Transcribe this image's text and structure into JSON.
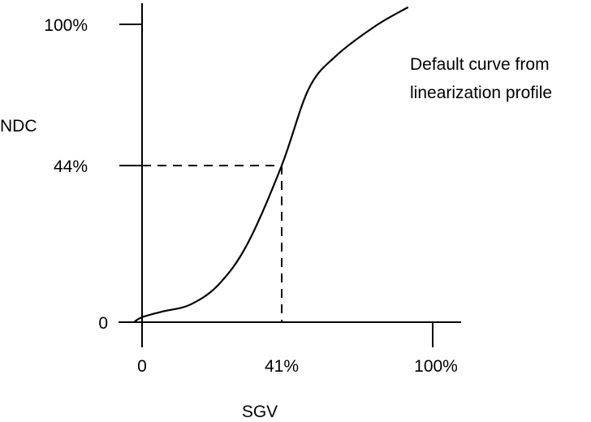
{
  "chart_data": {
    "type": "line",
    "title": "",
    "xlabel": "SGV",
    "ylabel": "NDC",
    "x_ticks": [
      {
        "value": 0,
        "label": "0"
      },
      {
        "value": 41,
        "label": "41%"
      },
      {
        "value": 100,
        "label": "100%"
      }
    ],
    "y_ticks": [
      {
        "value": 0,
        "label": "0"
      },
      {
        "value": 44,
        "label": "44%"
      },
      {
        "value": 100,
        "label": "100%"
      }
    ],
    "highlight_point": {
      "x": 41,
      "y": 44
    },
    "annotation": [
      "Default curve from",
      "linearization profile"
    ],
    "series": [
      {
        "name": "Default curve from linearization profile",
        "x": [
          -2.4,
          0,
          6,
          14.3,
          22.6,
          31,
          41,
          51.5,
          61.9,
          77.7,
          90.4
        ],
        "y": [
          0,
          1.4,
          3,
          5,
          10.7,
          22.1,
          44,
          74.3,
          87.2,
          99.4,
          106.8
        ]
      }
    ],
    "grid": false
  }
}
